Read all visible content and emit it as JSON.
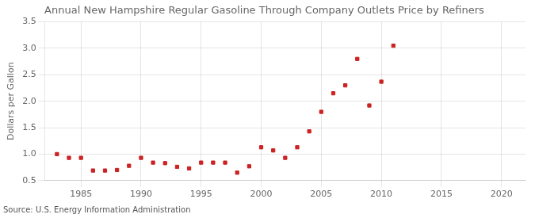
{
  "chart_data": {
    "type": "scatter",
    "title": "Annual New Hampshire Regular Gasoline Through Company Outlets Price by Refiners",
    "y_label": "Dollars per Gallon",
    "annotations": [
      "Source: U.S. Energy Information Administration"
    ],
    "x": [
      1983,
      1984,
      1985,
      1986,
      1987,
      1988,
      1989,
      1990,
      1991,
      1992,
      1993,
      1994,
      1995,
      1996,
      1997,
      1998,
      1999,
      2000,
      2001,
      2002,
      2003,
      2004,
      2005,
      2006,
      2007,
      2008,
      2009,
      2010,
      2011
    ],
    "values": [
      1.0,
      0.93,
      0.93,
      0.69,
      0.69,
      0.7,
      0.78,
      0.93,
      0.84,
      0.83,
      0.76,
      0.73,
      0.84,
      0.84,
      0.84,
      0.65,
      0.77,
      1.13,
      1.07,
      0.93,
      1.13,
      1.43,
      1.8,
      2.15,
      2.3,
      2.8,
      1.92,
      2.37,
      3.05
    ],
    "color": "#cc2222",
    "marker": "square",
    "xlim": [
      1982,
      2022
    ],
    "ylim": [
      0.5,
      3.5
    ],
    "xticks": [
      1985,
      1990,
      1995,
      2000,
      2005,
      2010,
      2015,
      2020
    ],
    "yticks": [
      0.5,
      {
        "value": 1.0,
        "label": "1.0"
      },
      1.5,
      {
        "value": 2.0,
        "label": "2.0"
      },
      2.5,
      {
        "value": 3.0,
        "label": "3.0"
      },
      3.5
    ],
    "grid": true
  }
}
